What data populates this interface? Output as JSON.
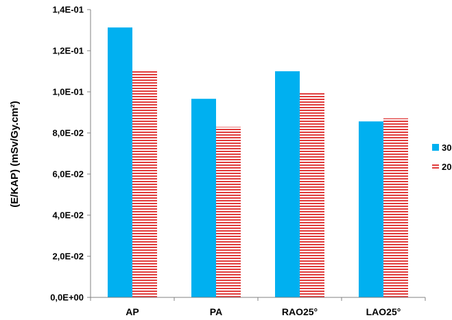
{
  "chart_data": {
    "type": "bar",
    "title": "",
    "xlabel": "",
    "ylabel": "(E/KAP) (mSv/Gy.cm²)",
    "categories": [
      "AP",
      "PA",
      "RAO25°",
      "LAO25°"
    ],
    "series": [
      {
        "name": "30",
        "values": [
          0.1313,
          0.0966,
          0.11,
          0.0856
        ],
        "color": "#00b0f0",
        "pattern": "solid"
      },
      {
        "name": "20",
        "values": [
          0.1103,
          0.0829,
          0.0997,
          0.0871
        ],
        "color": "#e03c3c",
        "pattern": "horizontal-stripes"
      }
    ],
    "ylim": [
      0,
      0.14
    ],
    "y_ticks": [
      0,
      0.02,
      0.04,
      0.06,
      0.08,
      0.1,
      0.12,
      0.14
    ],
    "y_tick_labels": [
      "0,0E+00",
      "2,0E-02",
      "4,0E-02",
      "6,0E-02",
      "8,0E-02",
      "1,0E-01",
      "1,2E-01",
      "1,4E-01"
    ],
    "grid": false,
    "legend_position": "right"
  }
}
